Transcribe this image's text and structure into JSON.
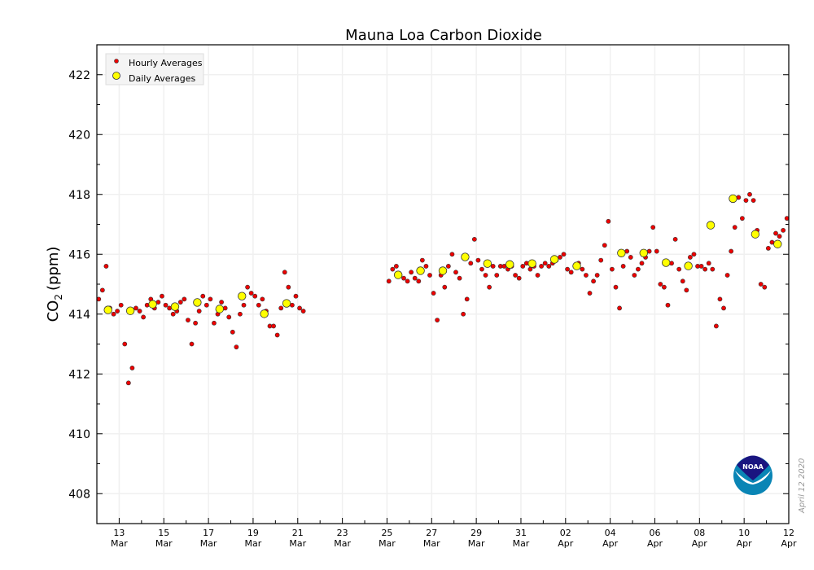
{
  "chart_data": {
    "type": "scatter",
    "title": "Mauna Loa Carbon Dioxide",
    "ylabel": "CO₂ (ppm)",
    "ylabel_main": "CO",
    "ylabel_sub": "2",
    "ylabel_unit": "(ppm)",
    "xlabel": "",
    "x_units": "days since 12 Mar 2020 00:00",
    "xlim": [
      0,
      31
    ],
    "ylim": [
      407,
      423
    ],
    "grid": true,
    "legend_placement": "top-left",
    "yticks": [
      408,
      410,
      412,
      414,
      416,
      418,
      420,
      422
    ],
    "xticks": [
      {
        "x": 1,
        "day": "13",
        "month": "Mar"
      },
      {
        "x": 3,
        "day": "15",
        "month": "Mar"
      },
      {
        "x": 5,
        "day": "17",
        "month": "Mar"
      },
      {
        "x": 7,
        "day": "19",
        "month": "Mar"
      },
      {
        "x": 9,
        "day": "21",
        "month": "Mar"
      },
      {
        "x": 11,
        "day": "23",
        "month": "Mar"
      },
      {
        "x": 13,
        "day": "25",
        "month": "Mar"
      },
      {
        "x": 15,
        "day": "27",
        "month": "Mar"
      },
      {
        "x": 17,
        "day": "29",
        "month": "Mar"
      },
      {
        "x": 19,
        "day": "31",
        "month": "Mar"
      },
      {
        "x": 21,
        "day": "02",
        "month": "Apr"
      },
      {
        "x": 23,
        "day": "04",
        "month": "Apr"
      },
      {
        "x": 25,
        "day": "06",
        "month": "Apr"
      },
      {
        "x": 27,
        "day": "08",
        "month": "Apr"
      },
      {
        "x": 29,
        "day": "10",
        "month": "Apr"
      },
      {
        "x": 31,
        "day": "12",
        "month": "Apr"
      }
    ],
    "series": [
      {
        "name": "Hourly Averages",
        "color": "#ee0000",
        "hourly_by_day": [
          {
            "start": 0,
            "values": [
              414.5,
              414.8,
              415.6,
              414.2,
              414.0,
              414.1
            ]
          },
          {
            "start": 1,
            "values": [
              414.3,
              413.0,
              411.7,
              412.2,
              414.2,
              414.1
            ]
          },
          {
            "start": 2,
            "values": [
              413.9,
              414.3,
              414.5,
              414.2,
              414.4,
              414.6
            ]
          },
          {
            "start": 3,
            "values": [
              414.3,
              414.2,
              414.0,
              414.1,
              414.4,
              414.5
            ]
          },
          {
            "start": 4,
            "values": [
              413.8,
              413.0,
              413.7,
              414.1,
              414.6,
              414.3
            ]
          },
          {
            "start": 5,
            "values": [
              414.5,
              413.7,
              414.0,
              414.4,
              414.2,
              413.9
            ]
          },
          {
            "start": 6,
            "values": [
              413.4,
              412.9,
              414.0,
              414.3,
              414.9,
              414.7
            ]
          },
          {
            "start": 7,
            "values": [
              414.6,
              414.3,
              414.5,
              414.1,
              413.6,
              413.6
            ]
          },
          {
            "start": 8,
            "values": [
              413.3,
              414.2,
              415.4,
              414.9,
              414.3,
              414.6
            ]
          },
          {
            "start": 9,
            "values": [
              414.2,
              414.1
            ]
          },
          {
            "start": 13,
            "values": [
              415.1,
              415.5,
              415.6,
              415.3,
              415.2,
              415.1
            ]
          },
          {
            "start": 14,
            "values": [
              415.4,
              415.2,
              415.1,
              415.8,
              415.6,
              415.3
            ]
          },
          {
            "start": 15,
            "values": [
              414.7,
              413.8,
              415.3,
              414.9,
              415.6,
              416.0
            ]
          },
          {
            "start": 16,
            "values": [
              415.4,
              415.2,
              414.0,
              414.5,
              415.7,
              416.5
            ]
          },
          {
            "start": 17,
            "values": [
              415.8,
              415.5,
              415.3,
              414.9,
              415.6,
              415.3
            ]
          },
          {
            "start": 18,
            "values": [
              415.6,
              415.6,
              415.5,
              415.6,
              415.3,
              415.2
            ]
          },
          {
            "start": 19,
            "values": [
              415.6,
              415.7,
              415.5,
              415.6,
              415.3,
              415.6
            ]
          },
          {
            "start": 20,
            "values": [
              415.7,
              415.6,
              415.7,
              415.8,
              415.9,
              416.0
            ]
          },
          {
            "start": 21,
            "values": [
              415.5,
              415.4,
              415.6,
              415.7,
              415.5,
              415.3
            ]
          },
          {
            "start": 22,
            "values": [
              414.7,
              415.1,
              415.3,
              415.8,
              416.3,
              417.1
            ]
          },
          {
            "start": 23,
            "values": [
              415.5,
              414.9,
              414.2,
              415.6,
              416.1,
              415.9
            ]
          },
          {
            "start": 24,
            "values": [
              415.3,
              415.5,
              415.7,
              415.9,
              416.1,
              416.9
            ]
          },
          {
            "start": 25,
            "values": [
              416.1,
              415.0,
              414.9,
              414.3,
              415.7,
              416.5
            ]
          },
          {
            "start": 26,
            "values": [
              415.5,
              415.1,
              414.8,
              415.9,
              416.0,
              415.6
            ]
          },
          {
            "start": 27,
            "values": [
              415.6,
              415.5,
              415.7,
              415.5,
              413.6,
              414.5
            ]
          },
          {
            "start": 28,
            "values": [
              414.2,
              415.3,
              416.1,
              416.9,
              417.9,
              417.2
            ]
          },
          {
            "start": 29,
            "values": [
              417.8,
              418.0,
              417.8,
              416.8,
              415.0,
              414.9
            ]
          },
          {
            "start": 30,
            "values": [
              416.2,
              416.4,
              416.7,
              416.6,
              416.8,
              417.2
            ]
          }
        ]
      },
      {
        "name": "Daily Averages",
        "color": "#ffff00",
        "x": [
          0.5,
          1.5,
          2.5,
          3.5,
          4.5,
          5.5,
          6.5,
          7.5,
          8.5,
          13.5,
          14.5,
          15.5,
          16.5,
          17.5,
          18.5,
          19.5,
          20.5,
          21.5,
          23.5,
          24.5,
          25.5,
          26.5,
          27.5,
          28.5,
          29.5,
          30.5
        ],
        "y": [
          414.14,
          414.11,
          414.33,
          414.25,
          414.39,
          414.17,
          414.6,
          414.01,
          414.36,
          415.31,
          415.45,
          415.45,
          415.91,
          415.69,
          415.66,
          415.69,
          415.83,
          415.61,
          416.04,
          416.04,
          415.72,
          415.61,
          416.97,
          417.86,
          416.67,
          416.34
        ]
      }
    ],
    "annotations": {
      "date_stamp": "April 12 2020",
      "logo_text": "NOAA"
    }
  }
}
